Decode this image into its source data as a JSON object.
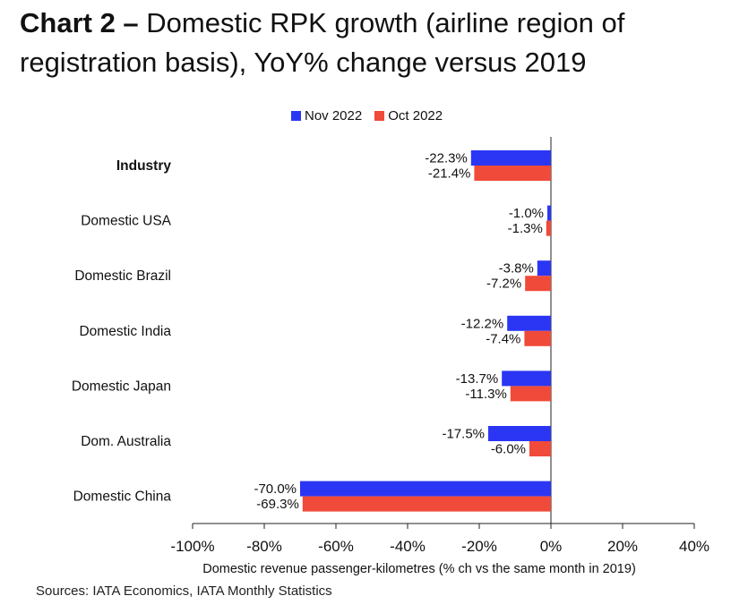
{
  "title": {
    "lead": "Chart 2 –",
    "rest": " Domestic RPK growth (airline region of registration basis), YoY% change versus 2019"
  },
  "source": "Sources: IATA Economics, IATA Monthly Statistics",
  "chart_data": {
    "type": "bar",
    "orientation": "horizontal",
    "title": "Domestic RPK growth (airline region of registration basis), YoY% change versus 2019",
    "xlabel": "Domestic revenue passenger-kilometres (% ch vs the same month in 2019)",
    "ylabel": "",
    "xlim": [
      -100,
      40
    ],
    "x_ticks": [
      -100,
      -80,
      -60,
      -40,
      -20,
      0,
      20,
      40
    ],
    "x_tick_labels": [
      "-100%",
      "-80%",
      "-60%",
      "-40%",
      "-20%",
      "0%",
      "20%",
      "40%"
    ],
    "grid": false,
    "legend_position": "top-center",
    "categories": [
      "Industry",
      "Domestic USA",
      "Domestic Brazil",
      "Domestic India",
      "Domestic Japan",
      "Dom. Australia",
      "Domestic China"
    ],
    "bold_categories": [
      "Industry"
    ],
    "series": [
      {
        "name": "Nov 2022",
        "color": "#2b36f5",
        "values": [
          -22.3,
          -1.0,
          -3.8,
          -12.2,
          -13.7,
          -17.5,
          -70.0
        ],
        "labels": [
          "-22.3%",
          "-1.0%",
          "-3.8%",
          "-12.2%",
          "-13.7%",
          "-17.5%",
          "-70.0%"
        ]
      },
      {
        "name": "Oct 2022",
        "color": "#f04a3a",
        "values": [
          -21.4,
          -1.3,
          -7.2,
          -7.4,
          -11.3,
          -6.0,
          -69.3
        ],
        "labels": [
          "-21.4%",
          "-1.3%",
          "-7.2%",
          "-7.4%",
          "-11.3%",
          "-6.0%",
          "-69.3%"
        ]
      }
    ]
  }
}
